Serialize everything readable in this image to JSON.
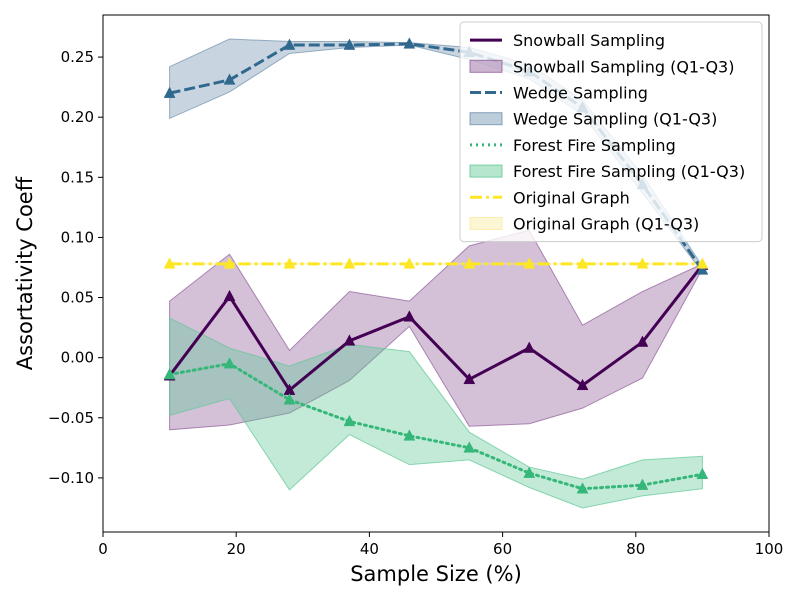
{
  "chart_data": {
    "type": "line",
    "title": "",
    "xlabel": "Sample Size (%)",
    "ylabel": "Assortativity Coeff",
    "xlim": [
      0,
      100
    ],
    "ylim": [
      -0.145,
      0.285
    ],
    "xticks": [
      0,
      20,
      40,
      60,
      80,
      100
    ],
    "yticks": [
      -0.1,
      -0.05,
      0.0,
      0.05,
      0.1,
      0.15,
      0.2,
      0.25
    ],
    "x": [
      10,
      19,
      28,
      37,
      46,
      55,
      64,
      72,
      81,
      90
    ],
    "grid": false,
    "legend_position": "top-right",
    "series": [
      {
        "name": "Snowball Sampling",
        "band_name": "Snowball Sampling (Q1-Q3)",
        "color": "#440154",
        "band_color": "#8e5b99",
        "line_style": "solid",
        "values": [
          -0.015,
          0.051,
          -0.027,
          0.014,
          0.034,
          -0.018,
          0.008,
          -0.023,
          0.013,
          0.077
        ],
        "q1": [
          -0.06,
          -0.056,
          -0.046,
          -0.019,
          0.026,
          -0.057,
          -0.055,
          -0.042,
          -0.017,
          0.074
        ],
        "q3": [
          0.047,
          0.086,
          0.006,
          0.055,
          0.047,
          0.093,
          0.106,
          0.027,
          0.055,
          0.078
        ]
      },
      {
        "name": "Wedge Sampling",
        "band_name": "Wedge Sampling (Q1-Q3)",
        "color": "#31688e",
        "band_color": "#6f90ad",
        "line_style": "dashed",
        "values": [
          0.22,
          0.231,
          0.26,
          0.26,
          0.261,
          0.254,
          0.238,
          0.208,
          0.144,
          0.073
        ],
        "q1": [
          0.199,
          0.221,
          0.253,
          0.258,
          0.26,
          0.248,
          0.232,
          0.202,
          0.137,
          0.071
        ],
        "q3": [
          0.242,
          0.265,
          0.263,
          0.263,
          0.262,
          0.258,
          0.244,
          0.214,
          0.152,
          0.076
        ]
      },
      {
        "name": "Forest Fire Sampling",
        "band_name": "Forest Fire Sampling (Q1-Q3)",
        "color": "#35b779",
        "band_color": "#5fc795",
        "line_style": "dotted",
        "values": [
          -0.014,
          -0.005,
          -0.035,
          -0.053,
          -0.065,
          -0.075,
          -0.096,
          -0.109,
          -0.106,
          -0.097
        ],
        "q1": [
          -0.048,
          -0.034,
          -0.11,
          -0.064,
          -0.089,
          -0.085,
          -0.108,
          -0.125,
          -0.115,
          -0.109
        ],
        "q3": [
          0.033,
          0.008,
          -0.007,
          0.011,
          0.005,
          -0.062,
          -0.091,
          -0.101,
          -0.085,
          -0.082
        ]
      },
      {
        "name": "Original Graph",
        "band_name": "Original Graph (Q1-Q3)",
        "color": "#fde725",
        "band_color": "#fbeaa0",
        "line_style": "dashdot",
        "values": [
          0.078,
          0.078,
          0.078,
          0.078,
          0.078,
          0.078,
          0.078,
          0.078,
          0.078,
          0.078
        ],
        "q1": [
          0.078,
          0.078,
          0.078,
          0.078,
          0.078,
          0.078,
          0.078,
          0.078,
          0.078,
          0.078
        ],
        "q3": [
          0.078,
          0.078,
          0.078,
          0.078,
          0.078,
          0.078,
          0.078,
          0.078,
          0.078,
          0.078
        ]
      }
    ]
  }
}
